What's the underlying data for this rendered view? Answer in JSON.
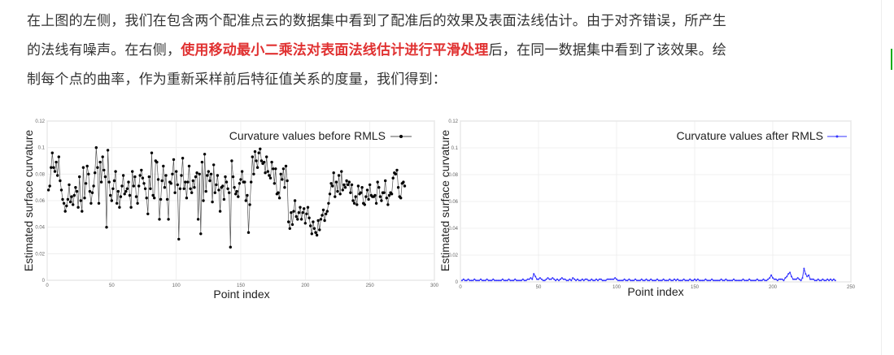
{
  "article": {
    "line1": "在上图的左侧，我们在包含两个配准点云的数据集中看到了配准后的效果及表面法线估计。由于对齐错误，所产生",
    "line2_pre": "的法线有噪声。在右侧，",
    "line2_highlight": "使用移动最小二乘法对表面法线估计进行平滑处理",
    "line2_post": "后，在同一数据集中看到了该效果。绘",
    "line3": "制每个点的曲率，作为重新采样前后特征值关系的度量，我们得到："
  },
  "colors": {
    "text": "#333333",
    "highlight": "#e03131",
    "before_series": "#000000",
    "after_series": "#3333ff"
  },
  "chart_data": [
    {
      "type": "line",
      "xlabel": "Point index",
      "ylabel": "Estimated surface curvature",
      "xlim": [
        0,
        300
      ],
      "ylim": [
        0,
        0.12
      ],
      "xticks": [
        "0",
        "50",
        "100",
        "150",
        "200",
        "250",
        "300"
      ],
      "yticks": [
        "0",
        "0.02",
        "0.04",
        "0.06",
        "0.08",
        "0.1",
        "0.12"
      ],
      "legend": "top-right",
      "series": [
        {
          "name": "Curvature values before RMLS",
          "marker": "dot",
          "values": [
            0.068,
            0.071,
            0.085,
            0.096,
            0.085,
            0.082,
            0.089,
            0.079,
            0.093,
            0.075,
            0.068,
            0.061,
            0.058,
            0.052,
            0.056,
            0.061,
            0.072,
            0.059,
            0.063,
            0.057,
            0.064,
            0.07,
            0.067,
            0.055,
            0.078,
            0.06,
            0.052,
            0.085,
            0.062,
            0.073,
            0.086,
            0.08,
            0.067,
            0.058,
            0.066,
            0.071,
            0.081,
            0.1,
            0.085,
            0.058,
            0.089,
            0.074,
            0.093,
            0.083,
            0.078,
            0.04,
            0.098,
            0.074,
            0.064,
            0.06,
            0.069,
            0.075,
            0.082,
            0.058,
            0.067,
            0.055,
            0.063,
            0.071,
            0.079,
            0.065,
            0.067,
            0.069,
            0.074,
            0.064,
            0.055,
            0.082,
            0.071,
            0.078,
            0.063,
            0.058,
            0.071,
            0.079,
            0.083,
            0.077,
            0.073,
            0.069,
            0.062,
            0.05,
            0.078,
            0.069,
            0.096,
            0.064,
            0.062,
            0.09,
            0.089,
            0.076,
            0.046,
            0.061,
            0.075,
            0.086,
            0.07,
            0.079,
            0.061,
            0.046,
            0.074,
            0.073,
            0.08,
            0.091,
            0.066,
            0.082,
            0.072,
            0.031,
            0.069,
            0.079,
            0.092,
            0.069,
            0.074,
            0.062,
            0.074,
            0.086,
            0.069,
            0.066,
            0.075,
            0.07,
            0.078,
            0.081,
            0.046,
            0.08,
            0.035,
            0.089,
            0.06,
            0.095,
            0.067,
            0.079,
            0.082,
            0.075,
            0.08,
            0.059,
            0.087,
            0.066,
            0.072,
            0.079,
            0.068,
            0.052,
            0.07,
            0.071,
            0.061,
            0.078,
            0.074,
            0.069,
            0.066,
            0.025,
            0.09,
            0.078,
            0.07,
            0.065,
            0.067,
            0.063,
            0.073,
            0.076,
            0.082,
            0.074,
            0.074,
            0.06,
            0.064,
            0.036,
            0.057,
            0.074,
            0.093,
            0.08,
            0.097,
            0.09,
            0.085,
            0.096,
            0.099,
            0.09,
            0.088,
            0.089,
            0.081,
            0.093,
            0.082,
            0.079,
            0.077,
            0.089,
            0.084,
            0.073,
            0.084,
            0.065,
            0.066,
            0.062,
            0.08,
            0.076,
            0.084,
            0.07,
            0.086,
            0.075,
            0.044,
            0.039,
            0.051,
            0.042,
            0.052,
            0.06,
            0.048,
            0.046,
            0.051,
            0.055,
            0.046,
            0.051,
            0.054,
            0.043,
            0.05,
            0.055,
            0.047,
            0.041,
            0.035,
            0.044,
            0.039,
            0.036,
            0.034,
            0.045,
            0.038,
            0.046,
            0.049,
            0.053,
            0.045,
            0.05,
            0.052,
            0.058,
            0.065,
            0.073,
            0.071,
            0.081,
            0.063,
            0.074,
            0.067,
            0.079,
            0.065,
            0.082,
            0.068,
            0.072,
            0.07,
            0.075,
            0.072,
            0.074,
            0.066,
            0.072,
            0.06,
            0.058,
            0.063,
            0.057,
            0.071,
            0.065,
            0.066,
            0.07,
            0.058,
            0.057,
            0.063,
            0.068,
            0.061,
            0.072,
            0.064,
            0.063,
            0.063,
            0.064,
            0.058,
            0.074,
            0.07,
            0.063,
            0.06,
            0.066,
            0.066,
            0.075,
            0.062,
            0.057,
            0.064,
            0.066,
            0.065,
            0.077,
            0.081,
            0.08,
            0.083,
            0.07,
            0.063,
            0.062,
            0.073,
            0.074,
            0.071
          ]
        }
      ]
    },
    {
      "type": "line",
      "xlabel": "Point index",
      "ylabel": "Estimated surface curvature",
      "xlim": [
        0,
        250
      ],
      "ylim": [
        0,
        0.12
      ],
      "xticks": [
        "0",
        "50",
        "100",
        "150",
        "200",
        "250"
      ],
      "yticks": [
        "0",
        "0.02",
        "0.04",
        "0.06",
        "0.08",
        "0.1",
        "0.12"
      ],
      "legend": "top-right",
      "series": [
        {
          "name": "Curvature values after RMLS",
          "marker": "small-dot",
          "values": [
            0.001,
            0.002,
            0.001,
            0.001,
            0.002,
            0.001,
            0.001,
            0.001,
            0.002,
            0.001,
            0.001,
            0.001,
            0.002,
            0.001,
            0.001,
            0.001,
            0.002,
            0.001,
            0.001,
            0.001,
            0.002,
            0.001,
            0.001,
            0.001,
            0.001,
            0.001,
            0.002,
            0.001,
            0.001,
            0.001,
            0.002,
            0.001,
            0.001,
            0.001,
            0.002,
            0.001,
            0.001,
            0.001,
            0.001,
            0.002,
            0.001,
            0.001,
            0.002,
            0.002,
            0.003,
            0.002,
            0.006,
            0.004,
            0.002,
            0.002,
            0.003,
            0.002,
            0.001,
            0.001,
            0.002,
            0.003,
            0.002,
            0.002,
            0.003,
            0.002,
            0.001,
            0.002,
            0.001,
            0.002,
            0.003,
            0.002,
            0.002,
            0.001,
            0.001,
            0.002,
            0.001,
            0.003,
            0.002,
            0.001,
            0.002,
            0.001,
            0.001,
            0.002,
            0.001,
            0.002,
            0.002,
            0.001,
            0.001,
            0.002,
            0.001,
            0.001,
            0.002,
            0.001,
            0.002,
            0.002,
            0.001,
            0.001,
            0.001,
            0.002,
            0.002,
            0.002,
            0.002,
            0.002,
            0.003,
            0.002,
            0.001,
            0.001,
            0.001,
            0.001,
            0.002,
            0.001,
            0.001,
            0.002,
            0.001,
            0.001,
            0.001,
            0.002,
            0.001,
            0.001,
            0.001,
            0.002,
            0.001,
            0.001,
            0.002,
            0.001,
            0.001,
            0.002,
            0.001,
            0.001,
            0.001,
            0.002,
            0.001,
            0.001,
            0.001,
            0.002,
            0.001,
            0.001,
            0.001,
            0.002,
            0.001,
            0.001,
            0.002,
            0.001,
            0.002,
            0.001,
            0.001,
            0.001,
            0.002,
            0.001,
            0.001,
            0.001,
            0.002,
            0.001,
            0.001,
            0.002,
            0.001,
            0.002,
            0.001,
            0.001,
            0.001,
            0.001,
            0.002,
            0.001,
            0.001,
            0.001,
            0.002,
            0.001,
            0.001,
            0.001,
            0.001,
            0.001,
            0.002,
            0.001,
            0.001,
            0.002,
            0.001,
            0.001,
            0.001,
            0.001,
            0.002,
            0.001,
            0.001,
            0.001,
            0.001,
            0.001,
            0.002,
            0.001,
            0.001,
            0.001,
            0.002,
            0.001,
            0.001,
            0.001,
            0.001,
            0.002,
            0.001,
            0.001,
            0.001,
            0.002,
            0.001,
            0.001,
            0.002,
            0.003,
            0.005,
            0.003,
            0.002,
            0.002,
            0.001,
            0.002,
            0.002,
            0.002,
            0.001,
            0.003,
            0.004,
            0.006,
            0.007,
            0.004,
            0.002,
            0.002,
            0.002,
            0.003,
            0.002,
            0.001,
            0.003,
            0.01,
            0.006,
            0.004,
            0.005,
            0.002,
            0.002,
            0.002,
            0.001,
            0.001,
            0.002,
            0.001,
            0.001,
            0.002,
            0.001,
            0.001,
            0.002,
            0.001,
            0.002,
            0.001,
            0.002,
            0.001
          ]
        }
      ]
    }
  ]
}
